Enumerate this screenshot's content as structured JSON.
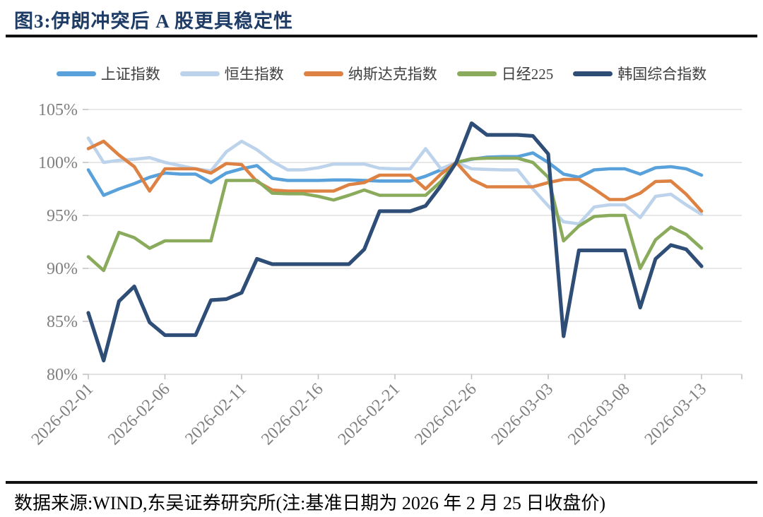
{
  "figure": {
    "title": "图3:伊朗冲突后 A 股更具稳定性",
    "source_note": "数据来源:WIND,东吴证券研究所(注:基准日期为 2026 年 2 月 25 日收盘价)"
  },
  "chart_data": {
    "type": "line",
    "title": "图3:伊朗冲突后 A 股更具稳定性",
    "xlabel": "",
    "ylabel": "",
    "ylim": [
      80,
      105
    ],
    "grid": "horizontal",
    "legend_position": "top",
    "y_ticks": [
      "105%",
      "100%",
      "95%",
      "90%",
      "85%",
      "80%"
    ],
    "y_tick_values": [
      105,
      100,
      95,
      90,
      85,
      80
    ],
    "x_tick_labels": [
      "2026-02-01",
      "2026-02-06",
      "2026-02-11",
      "2026-02-16",
      "2026-02-21",
      "2026-02-26",
      "2026-03-03",
      "2026-03-08",
      "2026-03-13"
    ],
    "x_range": [
      "2026-02-01",
      "2026-03-13"
    ],
    "points_per_series": 41,
    "base_note": "all series = 100% on 2026-02-25",
    "series": [
      {
        "name": "上证指数",
        "color": "#58A1DB",
        "width": 4.6,
        "values": [
          99.3,
          96.9,
          97.5,
          98.0,
          98.6,
          99.0,
          98.9,
          98.9,
          98.1,
          99.0,
          99.4,
          99.7,
          98.5,
          98.3,
          98.3,
          98.3,
          98.35,
          98.35,
          98.3,
          98.25,
          98.25,
          98.25,
          98.7,
          99.3,
          100.0,
          100.3,
          100.5,
          100.55,
          100.55,
          100.9,
          100.0,
          98.9,
          98.6,
          99.3,
          99.4,
          99.4,
          98.9,
          99.5,
          99.6,
          99.4,
          98.8
        ]
      },
      {
        "name": "恒生指数",
        "color": "#BDD3EB",
        "width": 4.6,
        "values": [
          102.3,
          100.0,
          100.2,
          100.3,
          100.45,
          100.0,
          99.7,
          99.4,
          99.2,
          101.0,
          102.0,
          101.2,
          100.1,
          99.3,
          99.3,
          99.5,
          99.85,
          99.85,
          99.85,
          99.45,
          99.4,
          99.4,
          101.3,
          99.4,
          100.0,
          99.4,
          99.35,
          99.3,
          99.3,
          97.5,
          95.9,
          94.4,
          94.2,
          95.8,
          96.0,
          96.0,
          94.8,
          96.8,
          97.0,
          96.0,
          95.1
        ]
      },
      {
        "name": "纳斯达克指数",
        "color": "#DD8243",
        "width": 4.6,
        "values": [
          101.3,
          102.0,
          100.7,
          99.6,
          97.3,
          99.4,
          99.4,
          99.4,
          99.0,
          99.9,
          99.8,
          98.2,
          97.4,
          97.3,
          97.3,
          97.3,
          97.3,
          97.9,
          98.1,
          98.8,
          98.8,
          98.8,
          97.5,
          98.9,
          100.0,
          98.4,
          97.7,
          97.7,
          97.7,
          97.7,
          98.1,
          98.4,
          98.4,
          97.5,
          96.5,
          96.5,
          97.1,
          98.2,
          98.25,
          97.0,
          95.4
        ]
      },
      {
        "name": "日经225",
        "color": "#8AAB5C",
        "width": 4.6,
        "values": [
          91.1,
          89.8,
          93.4,
          92.9,
          91.9,
          92.6,
          92.6,
          92.6,
          92.6,
          98.3,
          98.3,
          98.3,
          97.1,
          97.05,
          97.05,
          96.8,
          96.45,
          96.9,
          97.4,
          96.9,
          96.9,
          96.9,
          96.9,
          98.2,
          100.0,
          100.35,
          100.4,
          100.4,
          100.4,
          100.0,
          98.6,
          92.6,
          94.0,
          94.9,
          95.0,
          95.0,
          90.0,
          92.7,
          93.9,
          93.2,
          91.9
        ]
      },
      {
        "name": "韩国综合指数",
        "color": "#2E4D77",
        "width": 5.2,
        "values": [
          85.8,
          81.3,
          86.9,
          88.3,
          84.9,
          83.7,
          83.7,
          83.7,
          87.0,
          87.1,
          87.7,
          90.9,
          90.4,
          90.4,
          90.4,
          90.4,
          90.4,
          90.4,
          91.8,
          95.4,
          95.4,
          95.4,
          95.9,
          97.8,
          100.0,
          103.7,
          102.6,
          102.6,
          102.6,
          102.5,
          100.8,
          83.6,
          91.7,
          91.7,
          91.7,
          91.7,
          86.3,
          90.9,
          92.2,
          91.8,
          90.2
        ]
      }
    ]
  },
  "colors": {
    "grid": "#D9D9D9",
    "axis_tick": "#BFBFBF",
    "axis_text": "#7F7F7F",
    "title": "#1F3C66",
    "legend_text": "#3F3F3F",
    "rule": "#111111"
  }
}
